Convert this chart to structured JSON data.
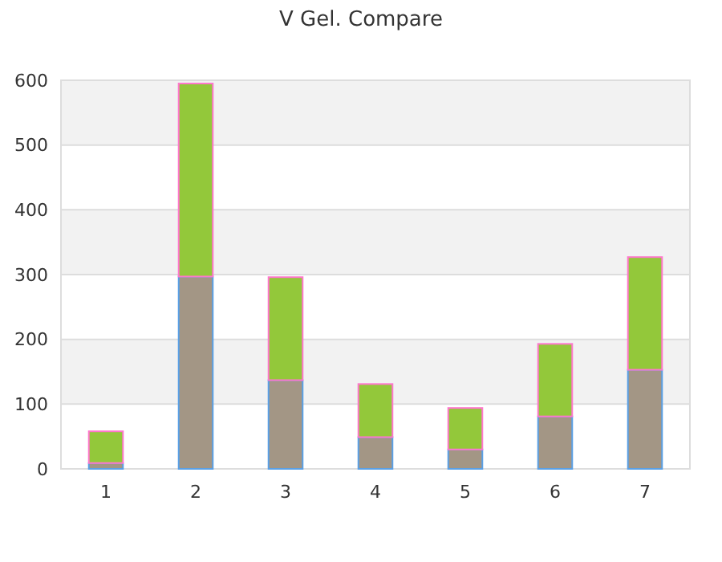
{
  "chart_data": {
    "type": "bar",
    "title": "V Gel. Compare",
    "categories": [
      "1",
      "2",
      "3",
      "4",
      "5",
      "6",
      "7"
    ],
    "stacked": true,
    "series": [
      {
        "color": "#a39685",
        "values": [
          9,
          297,
          137,
          49,
          30,
          81,
          153
        ]
      },
      {
        "color": "#93c83a",
        "values": [
          49,
          298,
          159,
          82,
          64,
          112,
          174
        ]
      }
    ],
    "ylim": [
      0,
      600
    ],
    "yticks": [
      0,
      100,
      200,
      300,
      400,
      500,
      600
    ],
    "grid": "y"
  }
}
